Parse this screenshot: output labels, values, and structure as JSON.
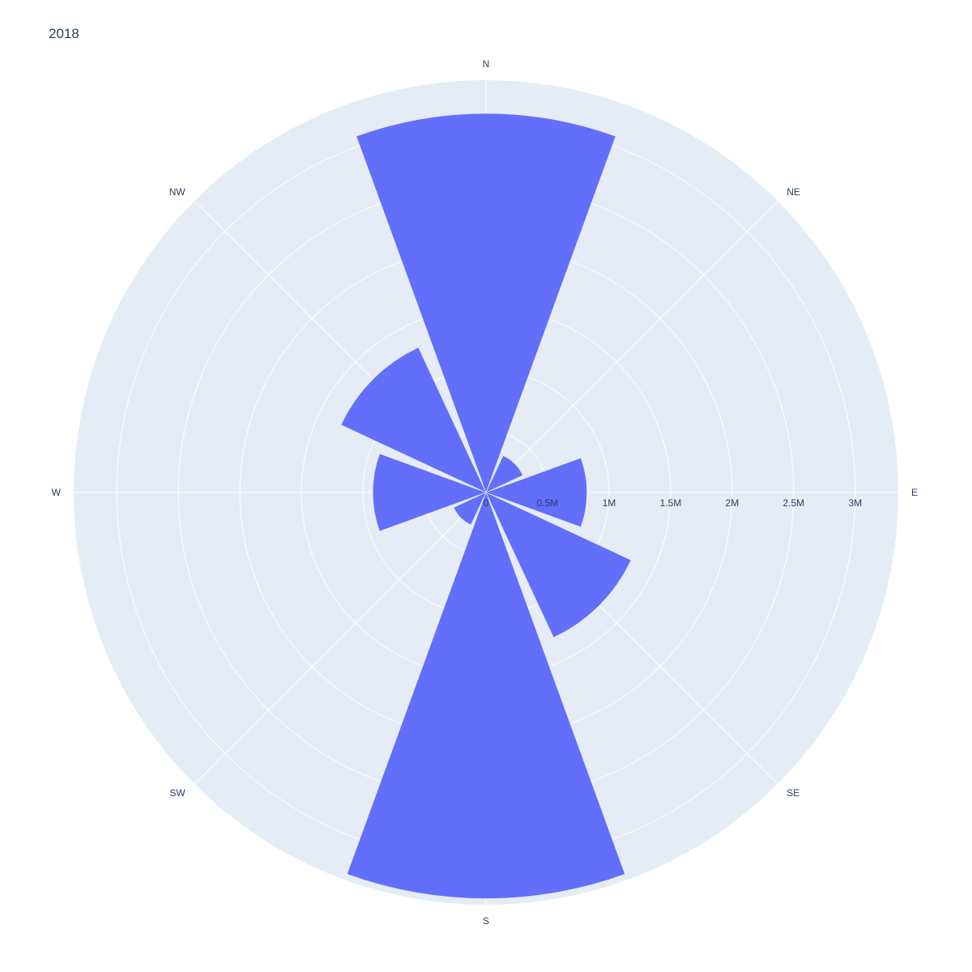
{
  "chart_data": {
    "type": "barpolar",
    "title": "2018",
    "bar_color": "#636efa",
    "polar_bg_color": "#e5ecf6",
    "grid_color": "#ffffff",
    "text_color": "#2a3f5f",
    "direction": "clockwise",
    "rotation_start": "N",
    "sector_width_deg": 40,
    "radial_range": [
      0,
      3.35
    ],
    "radial_unit_label": "M",
    "radial_ticks": [
      {
        "value": 0,
        "label": "0"
      },
      {
        "value": 0.5,
        "label": "0.5M"
      },
      {
        "value": 1,
        "label": "1M"
      },
      {
        "value": 1.5,
        "label": "1.5M"
      },
      {
        "value": 2,
        "label": "2M"
      },
      {
        "value": 2.5,
        "label": "2.5M"
      },
      {
        "value": 3,
        "label": "3M"
      }
    ],
    "angular_ticks": [
      {
        "label": "N",
        "angle": 0
      },
      {
        "label": "NE",
        "angle": 45
      },
      {
        "label": "E",
        "angle": 90
      },
      {
        "label": "SE",
        "angle": 135
      },
      {
        "label": "S",
        "angle": 180
      },
      {
        "label": "SW",
        "angle": 225
      },
      {
        "label": "W",
        "angle": 270
      },
      {
        "label": "NW",
        "angle": 315
      }
    ],
    "bars": [
      {
        "direction": "N",
        "theta": 0,
        "value": 3.08
      },
      {
        "direction": "NE",
        "theta": 45,
        "value": 0.33
      },
      {
        "direction": "E",
        "theta": 90,
        "value": 0.82
      },
      {
        "direction": "SE",
        "theta": 135,
        "value": 1.3
      },
      {
        "direction": "S",
        "theta": 180,
        "value": 3.3
      },
      {
        "direction": "SW",
        "theta": 225,
        "value": 0.29
      },
      {
        "direction": "W",
        "theta": 270,
        "value": 0.92
      },
      {
        "direction": "NW",
        "theta": 315,
        "value": 1.3
      }
    ]
  }
}
